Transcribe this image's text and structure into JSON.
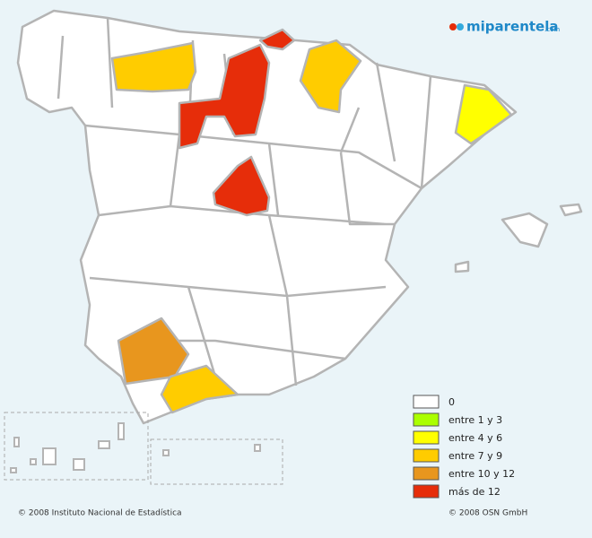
{
  "logo": {
    "name": "miparentela",
    "suffix": ".com"
  },
  "legend": [
    {
      "label": "0",
      "color": "#ffffff"
    },
    {
      "label": "entre 1 y 3",
      "color": "#aaff00"
    },
    {
      "label": "entre 4 y 6",
      "color": "#ffff00"
    },
    {
      "label": "entre 7 y 9",
      "color": "#ffcc00"
    },
    {
      "label": "entre 10 y 12",
      "color": "#e8961e"
    },
    {
      "label": "más de 12",
      "color": "#e62d0a"
    }
  ],
  "credits": {
    "left": "© 2008 Instituto Nacional de Estadística",
    "right": "© 2008 OSN GmbH"
  }
}
